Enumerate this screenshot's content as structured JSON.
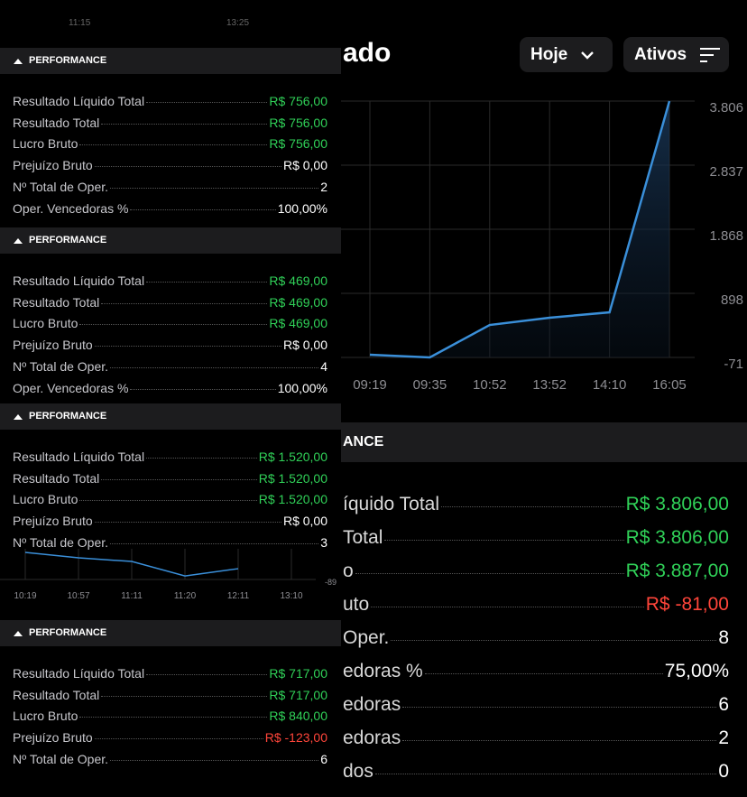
{
  "top_labels": [
    "11:15",
    "13:25"
  ],
  "header": {
    "title": "ado",
    "period_button": "Hoje",
    "assets_button": "Ativos"
  },
  "chart_data": {
    "type": "line",
    "categories": [
      "09:19",
      "09:35",
      "10:52",
      "13:52",
      "14:10",
      "16:05"
    ],
    "series": [
      {
        "color": "#3a8fd9",
        "values": [
          -30,
          -71,
          420,
          530,
          611,
          3806
        ]
      }
    ],
    "ylim": [
      -71,
      3806
    ],
    "yticks": [
      -71,
      898,
      {
        "value": 1868,
        "label": "1.868"
      },
      {
        "value": 2837,
        "label": "2.837"
      },
      {
        "value": 3806,
        "label": "3.806"
      }
    ],
    "grid": true
  },
  "summary": {
    "title": "ANCE",
    "rows": [
      {
        "label": "íquido Total",
        "value": "R$ 3.806,00",
        "color": "#30d158"
      },
      {
        "label": "Total",
        "value": "R$ 3.806,00",
        "color": "#30d158"
      },
      {
        "label": "o",
        "value": "R$ 3.887,00",
        "color": "#30d158"
      },
      {
        "label": "uto",
        "value": "R$ -81,00",
        "color": "#ff453a"
      },
      {
        "label": "Oper.",
        "value": "8",
        "color": "#ffffff"
      },
      {
        "label": "edoras %",
        "value": "75,00%",
        "color": "#ffffff"
      },
      {
        "label": "edoras",
        "value": "6",
        "color": "#ffffff"
      },
      {
        "label": "edoras",
        "value": "2",
        "color": "#ffffff"
      },
      {
        "label": "dos",
        "value": "0",
        "color": "#ffffff"
      }
    ]
  },
  "panels": [
    {
      "title": "PERFORMANCE",
      "rows": [
        {
          "label": "Resultado Líquido Total",
          "value": "R$ 756,00",
          "color": "#30d158"
        },
        {
          "label": "Resultado Total",
          "value": "R$ 756,00",
          "color": "#30d158"
        },
        {
          "label": "Lucro Bruto",
          "value": "R$ 756,00",
          "color": "#30d158"
        },
        {
          "label": "Prejuízo Bruto",
          "value": "R$ 0,00",
          "color": "#ffffff"
        },
        {
          "label": "Nº Total de Oper.",
          "value": "2",
          "color": "#ffffff"
        },
        {
          "label": "Oper. Vencedoras %",
          "value": "100,00%",
          "color": "#ffffff"
        }
      ]
    },
    {
      "title": "PERFORMANCE",
      "rows": [
        {
          "label": "Resultado Líquido Total",
          "value": "R$ 469,00",
          "color": "#30d158"
        },
        {
          "label": "Resultado Total",
          "value": "R$ 469,00",
          "color": "#30d158"
        },
        {
          "label": "Lucro Bruto",
          "value": "R$ 469,00",
          "color": "#30d158"
        },
        {
          "label": "Prejuízo Bruto",
          "value": "R$ 0,00",
          "color": "#ffffff"
        },
        {
          "label": "Nº Total de Oper.",
          "value": "4",
          "color": "#ffffff"
        },
        {
          "label": "Oper. Vencedoras %",
          "value": "100,00%",
          "color": "#ffffff"
        }
      ]
    },
    {
      "title": "PERFORMANCE",
      "rows": [
        {
          "label": "Resultado Líquido Total",
          "value": "R$ 1.520,00",
          "color": "#30d158"
        },
        {
          "label": "Resultado Total",
          "value": "R$ 1.520,00",
          "color": "#30d158"
        },
        {
          "label": "Lucro Bruto",
          "value": "R$ 1.520,00",
          "color": "#30d158"
        },
        {
          "label": "Prejuízo Bruto",
          "value": "R$ 0,00",
          "color": "#ffffff"
        },
        {
          "label": "Nº Total de Oper.",
          "value": "3",
          "color": "#ffffff"
        }
      ]
    },
    {
      "title": "PERFORMANCE",
      "rows": [
        {
          "label": "Resultado Líquido Total",
          "value": "R$ 717,00",
          "color": "#30d158"
        },
        {
          "label": "Resultado Total",
          "value": "R$ 717,00",
          "color": "#30d158"
        },
        {
          "label": "Lucro Bruto",
          "value": "R$ 840,00",
          "color": "#30d158"
        },
        {
          "label": "Prejuízo Bruto",
          "value": "R$ -123,00",
          "color": "#ff453a"
        },
        {
          "label": "Nº Total de Oper.",
          "value": "6",
          "color": "#ffffff"
        }
      ]
    }
  ],
  "mini_chart": {
    "type": "line",
    "categories": [
      "10:19",
      "10:57",
      "11:11",
      "11:20",
      "12:11",
      "13:10"
    ],
    "series": [
      {
        "color": "#3a8fd9",
        "values": [
          210,
          150,
          110,
          -50,
          30,
          null
        ]
      }
    ],
    "ylim": [
      -89,
      250
    ],
    "yticks": [
      -89
    ]
  }
}
